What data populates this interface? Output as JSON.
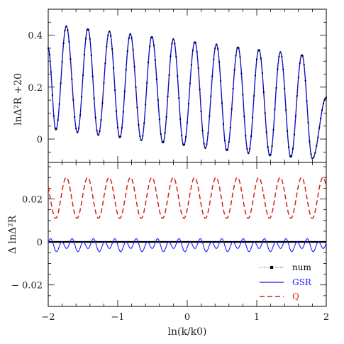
{
  "chart_data": [
    {
      "type": "line",
      "panel": "top",
      "xlabel": "",
      "ylabel": "lnΔ²R +20",
      "xlim": [
        -2,
        2
      ],
      "ylim": [
        -0.09,
        0.5
      ],
      "xticks": [
        -2,
        -1,
        0,
        1,
        2
      ],
      "yticks": [
        0,
        0.2,
        0.4
      ],
      "ytick_labels": [
        "0",
        "0.2",
        "0.4"
      ],
      "oscillation": {
        "periods_per_unit_x": 3.25,
        "peak_x": [
          -1.74,
          -1.43,
          -1.12,
          -0.82,
          -0.51,
          -0.2,
          0.11,
          0.42,
          0.73,
          1.03,
          1.34,
          1.65
        ],
        "peak_y": [
          0.435,
          0.425,
          0.415,
          0.405,
          0.395,
          0.385,
          0.375,
          0.365,
          0.355,
          0.345,
          0.335,
          0.325
        ],
        "trough_x": [
          -1.89,
          -1.58,
          -1.28,
          -0.97,
          -0.66,
          -0.35,
          -0.05,
          0.26,
          0.57,
          0.88,
          1.19,
          1.49,
          1.8
        ],
        "trough_y": [
          0.035,
          0.025,
          0.015,
          0.005,
          -0.005,
          -0.015,
          -0.025,
          -0.035,
          -0.045,
          -0.055,
          -0.065,
          -0.07,
          -0.075
        ],
        "y_at_x_min": 0.35,
        "y_at_x_max": 0.16
      },
      "series": [
        {
          "name": "num",
          "color": "#000000",
          "style": "dotted-markers"
        },
        {
          "name": "GSR",
          "color": "#1a1aff",
          "style": "solid"
        }
      ]
    },
    {
      "type": "line",
      "panel": "bottom",
      "xlabel": "ln(k/k0)",
      "ylabel": "Δ lnΔ²R",
      "xlim": [
        -2,
        2
      ],
      "ylim": [
        -0.03,
        0.037
      ],
      "xticks": [
        -2,
        -1,
        0,
        1,
        2
      ],
      "xtick_labels": [
        "−2",
        "−1",
        "0",
        "1",
        "2"
      ],
      "yticks": [
        -0.02,
        0,
        0.02
      ],
      "ytick_labels": [
        "− 0.02",
        "0",
        "0.02"
      ],
      "series": [
        {
          "name": "num",
          "color": "#000000",
          "style": "dotted-markers",
          "description_values": {
            "constant": 0
          }
        },
        {
          "name": "GSR",
          "color": "#1a1aff",
          "style": "solid",
          "offset": -0.0015,
          "amplitude": 0.003,
          "periods_per_unit_x": 6.5
        },
        {
          "name": "Q",
          "color": "#d42020",
          "style": "dashed",
          "center": 0.0205,
          "amplitude": 0.0095,
          "periods_per_unit_x": 3.25,
          "peak_x": [
            -1.74,
            -1.43,
            -1.12,
            -0.82,
            -0.51,
            -0.2,
            0.11,
            0.42,
            0.73,
            1.03,
            1.34,
            1.65
          ]
        }
      ],
      "legend": {
        "placement": "bottom-right",
        "entries": [
          "num",
          "GSR",
          "Q"
        ]
      }
    }
  ]
}
